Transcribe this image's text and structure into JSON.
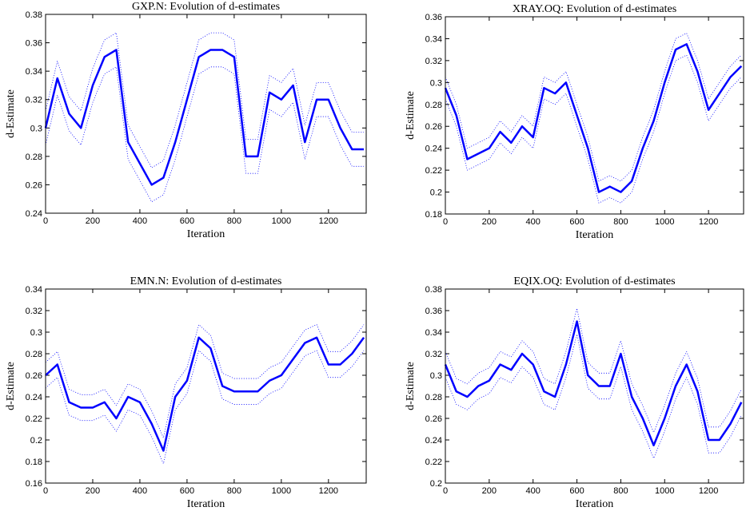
{
  "chart_data": [
    {
      "type": "line",
      "title": "GXP.N: Evolution of d-estimates",
      "xlabel": "Iteration",
      "ylabel": "d-Estimate",
      "x": [
        0,
        50,
        100,
        150,
        200,
        250,
        300,
        350,
        400,
        450,
        500,
        550,
        600,
        650,
        700,
        750,
        800,
        850,
        900,
        950,
        1000,
        1050,
        1100,
        1150,
        1200,
        1250,
        1300,
        1350
      ],
      "series": [
        {
          "color": "#0000ff",
          "dashed": true,
          "values": [
            0.288,
            0.323,
            0.298,
            0.288,
            0.318,
            0.338,
            0.343,
            0.278,
            0.263,
            0.248,
            0.253,
            0.278,
            0.308,
            0.338,
            0.343,
            0.343,
            0.338,
            0.268,
            0.268,
            0.313,
            0.308,
            0.318,
            0.278,
            0.308,
            0.308,
            0.288,
            0.273,
            0.273
          ]
        },
        {
          "color": "#0000ff",
          "dashed": false,
          "values": [
            0.3,
            0.335,
            0.31,
            0.3,
            0.33,
            0.35,
            0.355,
            0.29,
            0.275,
            0.26,
            0.265,
            0.29,
            0.32,
            0.35,
            0.355,
            0.355,
            0.35,
            0.28,
            0.28,
            0.325,
            0.32,
            0.33,
            0.29,
            0.32,
            0.32,
            0.3,
            0.285,
            0.285
          ]
        },
        {
          "color": "#0000ff",
          "dashed": true,
          "values": [
            0.312,
            0.347,
            0.322,
            0.312,
            0.342,
            0.362,
            0.367,
            0.302,
            0.287,
            0.272,
            0.277,
            0.302,
            0.332,
            0.362,
            0.367,
            0.367,
            0.362,
            0.292,
            0.292,
            0.337,
            0.332,
            0.342,
            0.302,
            0.332,
            0.332,
            0.312,
            0.297,
            0.297
          ]
        }
      ],
      "xlim": [
        0,
        1360
      ],
      "xticks": [
        0,
        200,
        400,
        600,
        800,
        1000,
        1200
      ],
      "ylim": [
        0.24,
        0.38
      ],
      "yticks": [
        0.24,
        0.26,
        0.28,
        0.3,
        0.32,
        0.34,
        0.36,
        0.38
      ]
    },
    {
      "type": "line",
      "title": "XRAY.OQ: Evolution of d-estimates",
      "xlabel": "Iteration",
      "ylabel": "d-Estimate",
      "x": [
        0,
        50,
        100,
        150,
        200,
        250,
        300,
        350,
        400,
        450,
        500,
        550,
        600,
        650,
        700,
        750,
        800,
        850,
        900,
        950,
        1000,
        1050,
        1100,
        1150,
        1200,
        1250,
        1300,
        1350
      ],
      "series": [
        {
          "color": "#0000ff",
          "dashed": true,
          "values": [
            0.285,
            0.26,
            0.22,
            0.225,
            0.23,
            0.245,
            0.235,
            0.25,
            0.24,
            0.285,
            0.28,
            0.29,
            0.26,
            0.23,
            0.19,
            0.195,
            0.19,
            0.2,
            0.23,
            0.255,
            0.29,
            0.32,
            0.325,
            0.3,
            0.265,
            0.28,
            0.295,
            0.305
          ]
        },
        {
          "color": "#0000ff",
          "dashed": false,
          "values": [
            0.295,
            0.27,
            0.23,
            0.235,
            0.24,
            0.255,
            0.245,
            0.26,
            0.25,
            0.295,
            0.29,
            0.3,
            0.27,
            0.24,
            0.2,
            0.205,
            0.2,
            0.21,
            0.24,
            0.265,
            0.3,
            0.33,
            0.335,
            0.31,
            0.275,
            0.29,
            0.305,
            0.315
          ]
        },
        {
          "color": "#0000ff",
          "dashed": true,
          "values": [
            0.305,
            0.28,
            0.24,
            0.245,
            0.25,
            0.265,
            0.255,
            0.27,
            0.26,
            0.305,
            0.3,
            0.31,
            0.28,
            0.25,
            0.21,
            0.215,
            0.21,
            0.22,
            0.25,
            0.275,
            0.31,
            0.34,
            0.345,
            0.32,
            0.285,
            0.3,
            0.315,
            0.325
          ]
        }
      ],
      "xlim": [
        0,
        1360
      ],
      "xticks": [
        0,
        200,
        400,
        600,
        800,
        1000,
        1200
      ],
      "ylim": [
        0.18,
        0.36
      ],
      "yticks": [
        0.18,
        0.2,
        0.22,
        0.24,
        0.26,
        0.28,
        0.3,
        0.32,
        0.34,
        0.36
      ]
    },
    {
      "type": "line",
      "title": "EMN.N: Evolution of d-estimates",
      "xlabel": "Iteration",
      "ylabel": "d-Estimate",
      "x": [
        0,
        50,
        100,
        150,
        200,
        250,
        300,
        350,
        400,
        450,
        500,
        550,
        600,
        650,
        700,
        750,
        800,
        850,
        900,
        950,
        1000,
        1050,
        1100,
        1150,
        1200,
        1250,
        1300,
        1350
      ],
      "series": [
        {
          "color": "#0000ff",
          "dashed": true,
          "values": [
            0.248,
            0.258,
            0.223,
            0.218,
            0.218,
            0.223,
            0.208,
            0.228,
            0.223,
            0.203,
            0.178,
            0.228,
            0.243,
            0.283,
            0.273,
            0.238,
            0.233,
            0.233,
            0.233,
            0.243,
            0.248,
            0.263,
            0.278,
            0.283,
            0.258,
            0.258,
            0.268,
            0.283
          ]
        },
        {
          "color": "#0000ff",
          "dashed": false,
          "values": [
            0.26,
            0.27,
            0.235,
            0.23,
            0.23,
            0.235,
            0.22,
            0.24,
            0.235,
            0.215,
            0.19,
            0.24,
            0.255,
            0.295,
            0.285,
            0.25,
            0.245,
            0.245,
            0.245,
            0.255,
            0.26,
            0.275,
            0.29,
            0.295,
            0.27,
            0.27,
            0.28,
            0.295
          ]
        },
        {
          "color": "#0000ff",
          "dashed": true,
          "values": [
            0.272,
            0.282,
            0.247,
            0.242,
            0.242,
            0.247,
            0.232,
            0.252,
            0.247,
            0.227,
            0.202,
            0.252,
            0.267,
            0.307,
            0.297,
            0.262,
            0.257,
            0.257,
            0.257,
            0.267,
            0.272,
            0.287,
            0.302,
            0.307,
            0.282,
            0.282,
            0.292,
            0.307
          ]
        }
      ],
      "xlim": [
        0,
        1360
      ],
      "xticks": [
        0,
        200,
        400,
        600,
        800,
        1000,
        1200
      ],
      "ylim": [
        0.16,
        0.34
      ],
      "yticks": [
        0.16,
        0.18,
        0.2,
        0.22,
        0.24,
        0.26,
        0.28,
        0.3,
        0.32,
        0.34
      ]
    },
    {
      "type": "line",
      "title": "EQIX.OQ: Evolution of d-estimates",
      "xlabel": "Iteration",
      "ylabel": "d-Estimate",
      "x": [
        0,
        50,
        100,
        150,
        200,
        250,
        300,
        350,
        400,
        450,
        500,
        550,
        600,
        650,
        700,
        750,
        800,
        850,
        900,
        950,
        1000,
        1050,
        1100,
        1150,
        1200,
        1250,
        1300,
        1350
      ],
      "series": [
        {
          "color": "#0000ff",
          "dashed": true,
          "values": [
            0.298,
            0.273,
            0.268,
            0.278,
            0.283,
            0.298,
            0.293,
            0.308,
            0.298,
            0.273,
            0.268,
            0.298,
            0.338,
            0.288,
            0.278,
            0.278,
            0.308,
            0.268,
            0.248,
            0.223,
            0.248,
            0.278,
            0.298,
            0.273,
            0.228,
            0.228,
            0.243,
            0.263
          ]
        },
        {
          "color": "#0000ff",
          "dashed": false,
          "values": [
            0.31,
            0.285,
            0.28,
            0.29,
            0.295,
            0.31,
            0.305,
            0.32,
            0.31,
            0.285,
            0.28,
            0.31,
            0.35,
            0.3,
            0.29,
            0.29,
            0.32,
            0.28,
            0.26,
            0.235,
            0.26,
            0.29,
            0.31,
            0.285,
            0.24,
            0.24,
            0.255,
            0.275
          ]
        },
        {
          "color": "#0000ff",
          "dashed": true,
          "values": [
            0.322,
            0.297,
            0.292,
            0.302,
            0.307,
            0.322,
            0.317,
            0.332,
            0.322,
            0.297,
            0.292,
            0.322,
            0.362,
            0.312,
            0.302,
            0.302,
            0.332,
            0.292,
            0.272,
            0.247,
            0.272,
            0.302,
            0.322,
            0.297,
            0.252,
            0.252,
            0.267,
            0.287
          ]
        }
      ],
      "xlim": [
        0,
        1360
      ],
      "xticks": [
        0,
        200,
        400,
        600,
        800,
        1000,
        1200
      ],
      "ylim": [
        0.2,
        0.38
      ],
      "yticks": [
        0.2,
        0.22,
        0.24,
        0.26,
        0.28,
        0.3,
        0.32,
        0.34,
        0.36,
        0.38
      ]
    }
  ]
}
